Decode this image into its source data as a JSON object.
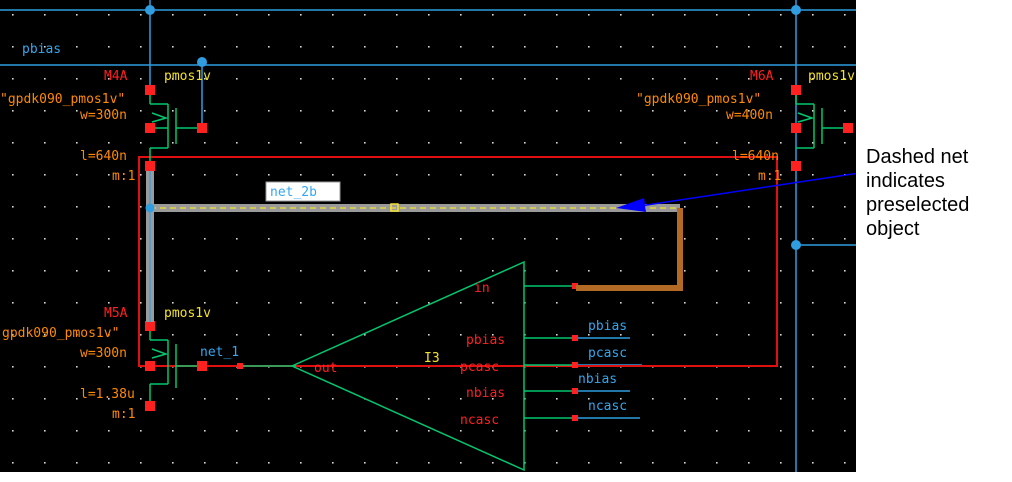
{
  "schematic": {
    "pins": {
      "pbias": "pbias"
    },
    "devices": {
      "m4a": {
        "inst": "M4A",
        "cell": "pmos1v",
        "model": "\"gpdk090_pmos1v\"",
        "w": "w=300n",
        "l": "l=640n",
        "m": "m:1"
      },
      "m6a": {
        "inst": "M6A",
        "cell": "pmos1v",
        "model": "\"gpdk090_pmos1v\"",
        "w": "w=400n",
        "l": "l=640n",
        "m": "m:1"
      },
      "m5a": {
        "inst": "M5A",
        "cell": "pmos1v",
        "model": "gpdk090_pmos1v\"",
        "w": "w=300n",
        "l": "l=1.38u",
        "m": "m:1"
      }
    },
    "nets": {
      "net_2": "net_2b",
      "net_1": "net_1"
    },
    "opamp": {
      "inst": "I3",
      "pins": {
        "in": "in",
        "out": "out",
        "pbias": "pbias",
        "pcasc": "pcasc",
        "nbias": "nbias",
        "ncasc": "ncasc"
      },
      "wire_labels": [
        "pbias",
        "pcasc",
        "nbias",
        "ncasc"
      ]
    },
    "colors": {
      "background": "#000000",
      "wire": "#2f9de0",
      "label": "#36a6ef",
      "device": "#00c86e",
      "pin": "#ff2020",
      "box": "#e01010",
      "attr": "#ff8a00",
      "highlight": "#9a9a9a",
      "preselect": "#f3e22b",
      "route": "#b36a25"
    }
  },
  "annotation": {
    "lines": [
      "Dashed net",
      "indicates",
      "preselected",
      "object"
    ],
    "arrow_color": "#0000ff"
  }
}
